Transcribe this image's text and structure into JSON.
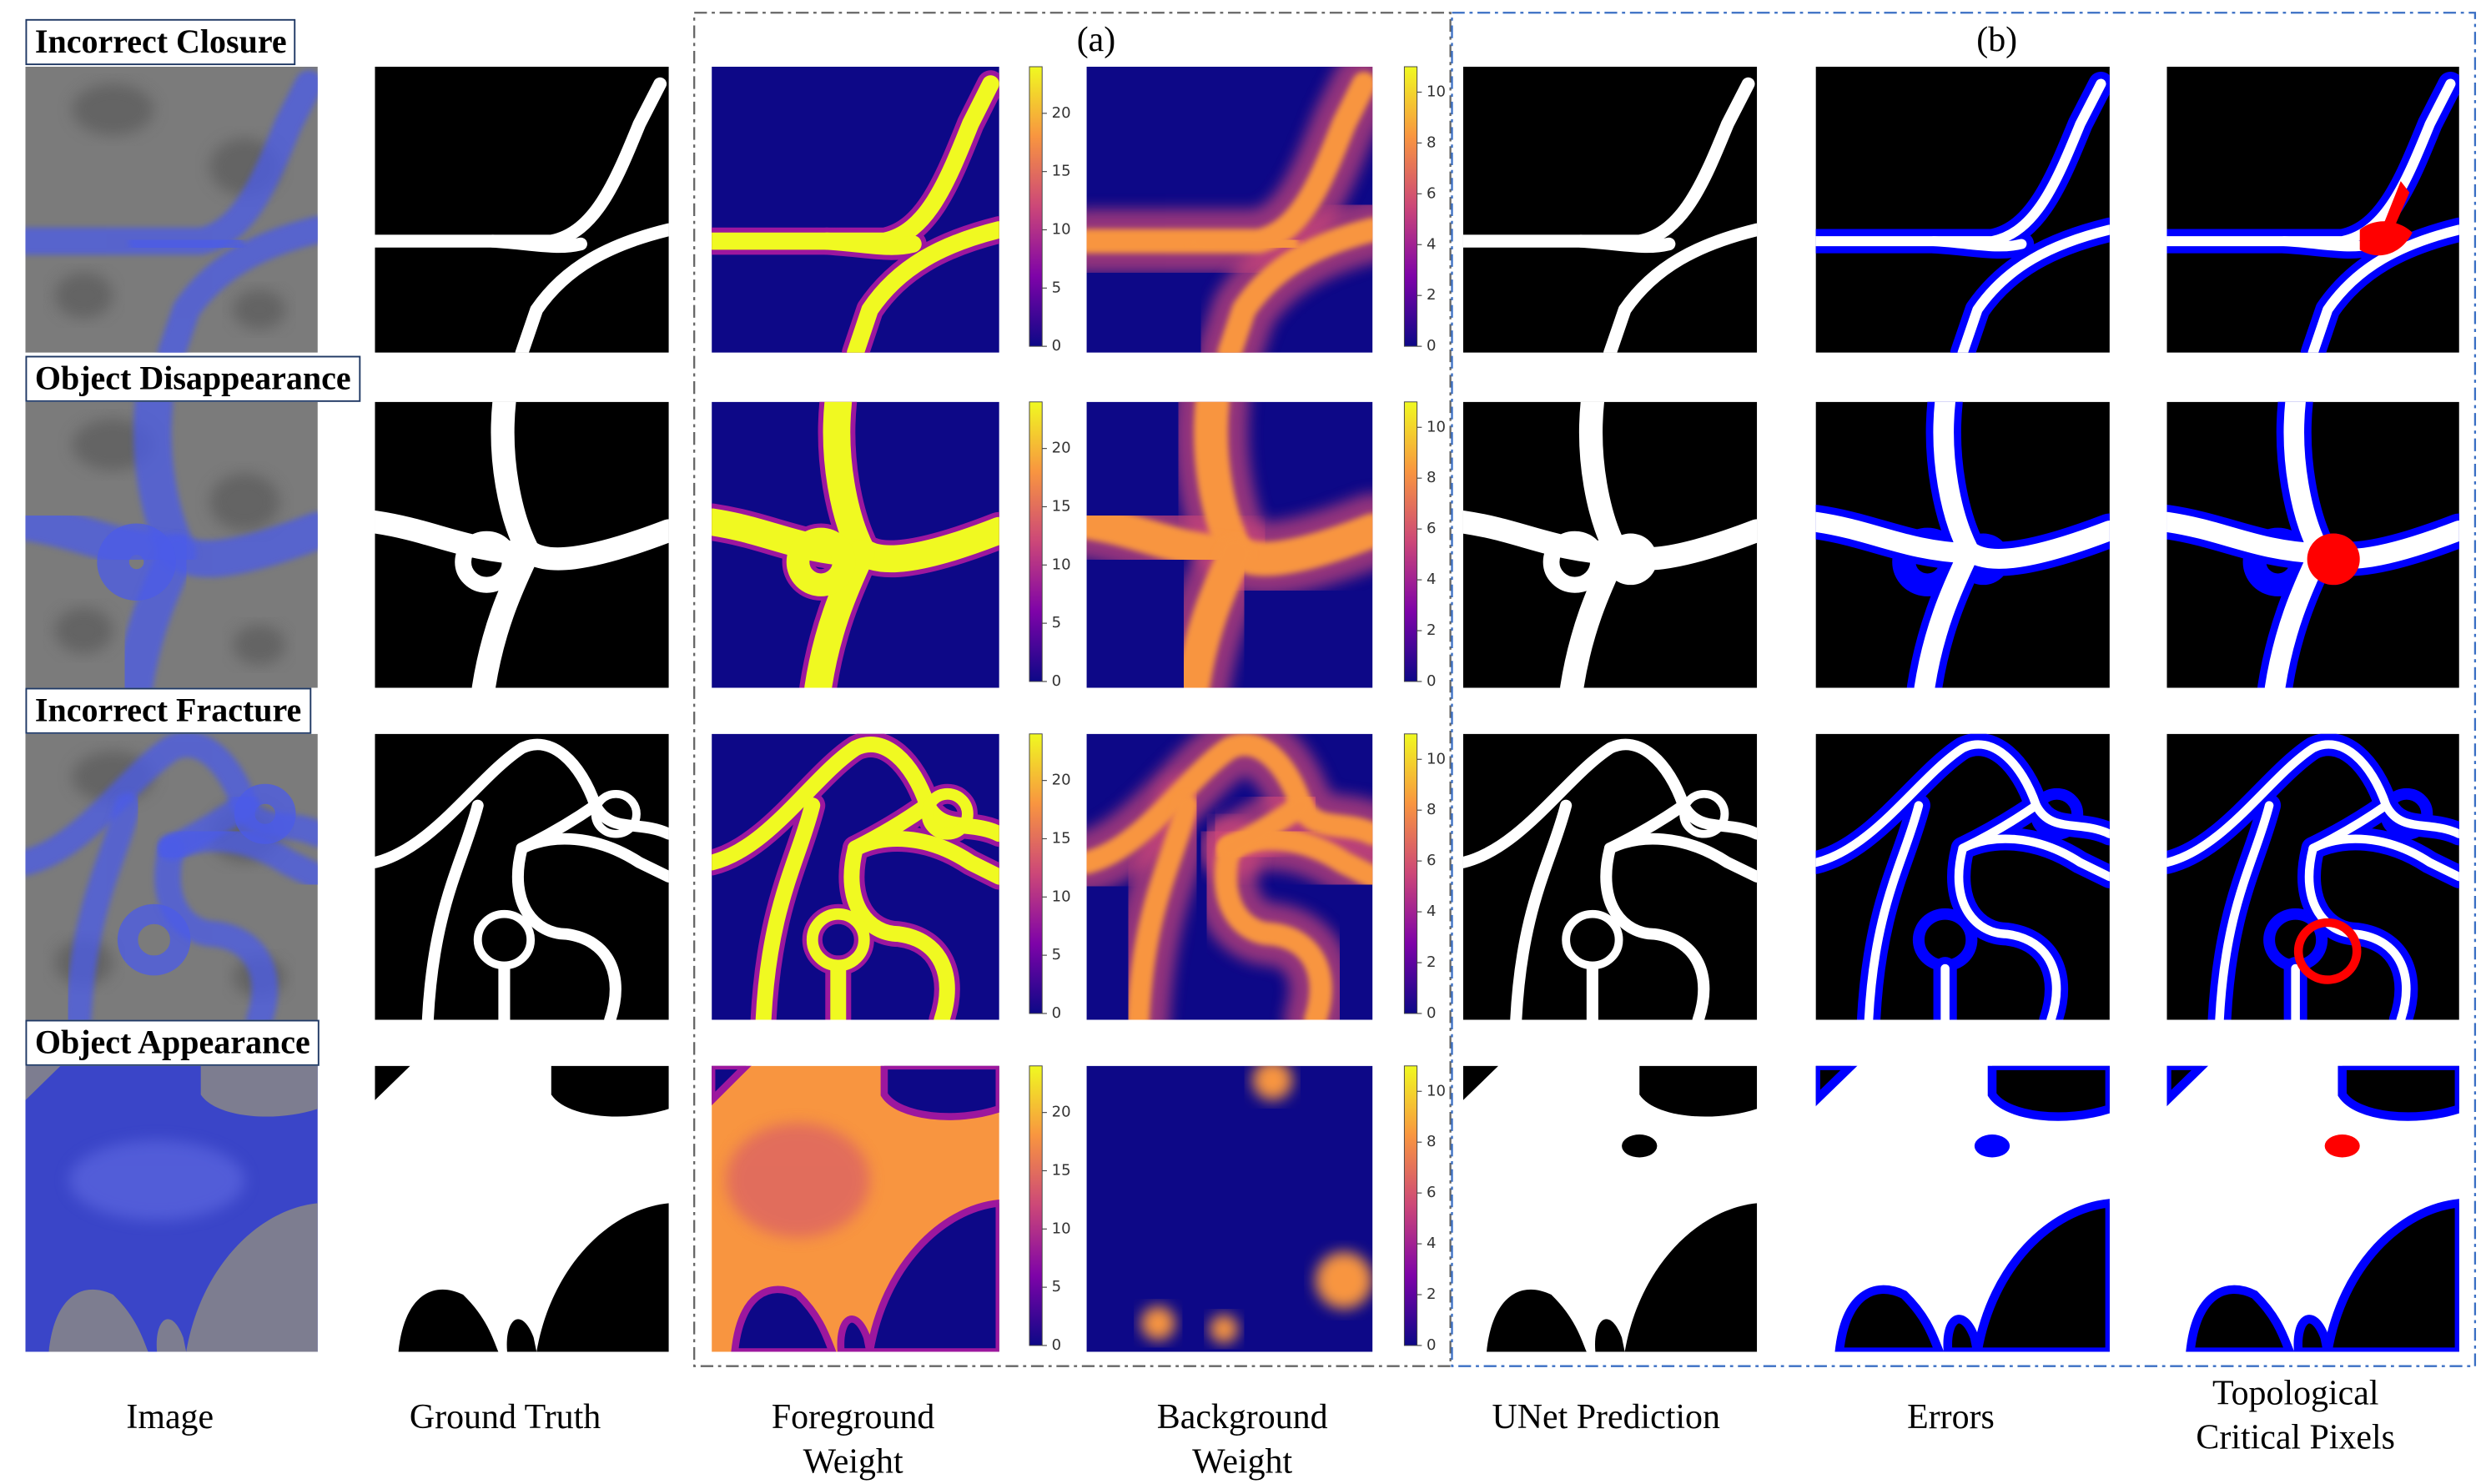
{
  "panel_labels": [
    "(a)",
    "(b)"
  ],
  "rows": [
    "Incorrect Closure",
    "Object Disappearance",
    "Incorrect Fracture",
    "Object Appearance"
  ],
  "columns": [
    "Image",
    "Ground Truth",
    "Foreground Weight",
    "Background Weight",
    "UNet Prediction",
    "Errors",
    "Topological Critical Pixels"
  ],
  "colorbars": {
    "foreground": {
      "range": [
        0,
        24
      ],
      "ticks": [
        0,
        5,
        10,
        15,
        20
      ]
    },
    "background": {
      "range": [
        0,
        11
      ],
      "ticks": [
        0,
        2,
        4,
        6,
        8,
        10
      ]
    }
  }
}
